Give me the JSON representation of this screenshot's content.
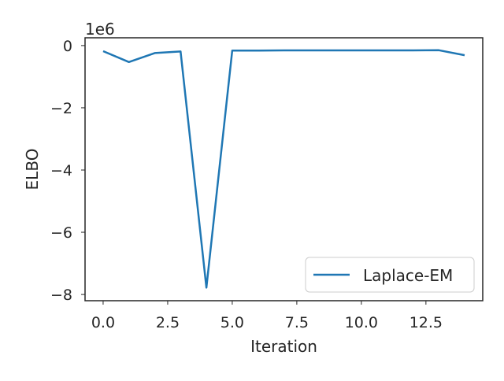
{
  "chart_data": {
    "type": "line",
    "title": "",
    "xlabel": "Iteration",
    "ylabel": "ELBO",
    "y_offset_label": "1e6",
    "y_scale": 1000000,
    "xlim": [
      -0.7,
      14.7
    ],
    "ylim": [
      -8200000,
      250000
    ],
    "x_ticks": [
      0.0,
      2.5,
      5.0,
      7.5,
      10.0,
      12.5
    ],
    "x_tick_labels": [
      "0.0",
      "2.5",
      "5.0",
      "7.5",
      "10.0",
      "12.5"
    ],
    "y_ticks": [
      0,
      -2000000,
      -4000000,
      -6000000,
      -8000000
    ],
    "y_tick_labels": [
      "0",
      "−2",
      "−4",
      "−6",
      "−8"
    ],
    "grid": false,
    "legend": {
      "placement": "lower-right",
      "entries": [
        "Laplace-EM"
      ]
    },
    "series": [
      {
        "name": "Laplace-EM",
        "color": "#1f77b4",
        "x": [
          0,
          1,
          2,
          3,
          4,
          5,
          6,
          7,
          8,
          9,
          10,
          11,
          12,
          13,
          14
        ],
        "values": [
          -180000,
          -530000,
          -240000,
          -190000,
          -7780000,
          -160000,
          -160000,
          -155000,
          -155000,
          -155000,
          -155000,
          -155000,
          -155000,
          -150000,
          -310000
        ]
      }
    ]
  }
}
